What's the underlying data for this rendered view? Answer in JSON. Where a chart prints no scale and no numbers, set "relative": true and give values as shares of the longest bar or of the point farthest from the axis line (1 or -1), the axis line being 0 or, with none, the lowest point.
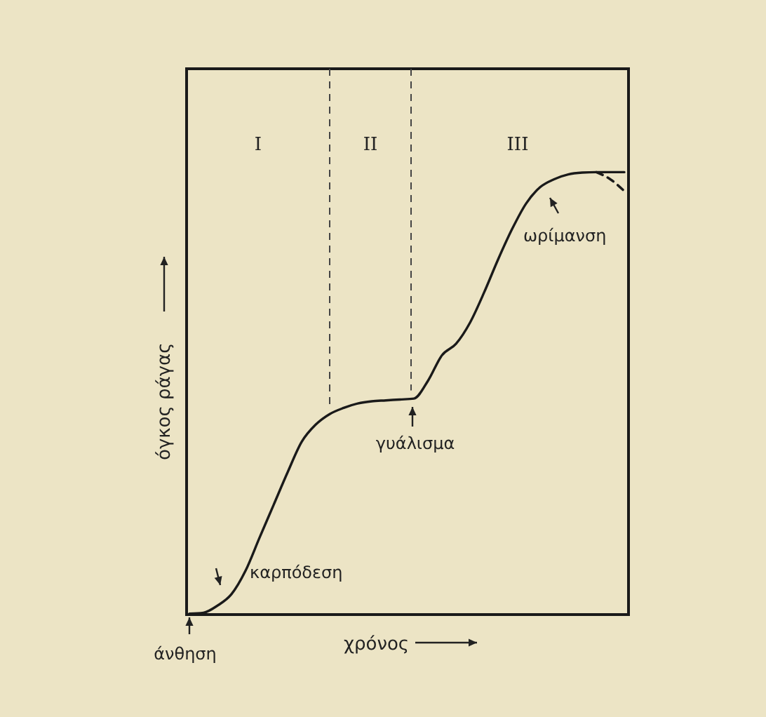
{
  "chart_data": {
    "type": "line",
    "relative": true,
    "xlabel": "χρόνος",
    "ylabel": "όγκος ράγας",
    "categories": [
      null,
      null,
      null,
      null,
      null,
      null,
      null,
      null,
      null,
      null,
      null,
      null,
      null,
      null,
      null,
      null,
      null,
      null,
      null,
      null,
      null,
      null,
      null,
      null,
      null,
      null,
      null,
      null,
      null,
      null,
      null,
      null
    ],
    "series": [
      {
        "color": "#1a1a1a",
        "line_style": "solid",
        "values": [
          0,
          0.002,
          0.018,
          0.044,
          0.097,
          0.172,
          0.246,
          0.32,
          0.389,
          0.428,
          0.452,
          0.466,
          0.476,
          0.481,
          0.483,
          0.485,
          0.487,
          0.527,
          0.585,
          0.611,
          0.659,
          0.727,
          0.802,
          0.871,
          0.929,
          0.966,
          0.984,
          0.995,
          0.999,
          1,
          1,
          1
        ]
      },
      {
        "color": "#1a1a1a",
        "line_style": "dashed",
        "values": [
          null,
          null,
          null,
          null,
          null,
          null,
          null,
          null,
          null,
          null,
          null,
          null,
          null,
          null,
          null,
          null,
          null,
          null,
          null,
          null,
          null,
          null,
          null,
          null,
          null,
          null,
          null,
          null,
          null,
          1,
          0.984,
          0.957
        ]
      }
    ],
    "annotations": [
      "άνθηση",
      "καρπόδεση",
      "γυάλισμα",
      "ωρίμανση",
      "I",
      "II",
      "III"
    ]
  }
}
